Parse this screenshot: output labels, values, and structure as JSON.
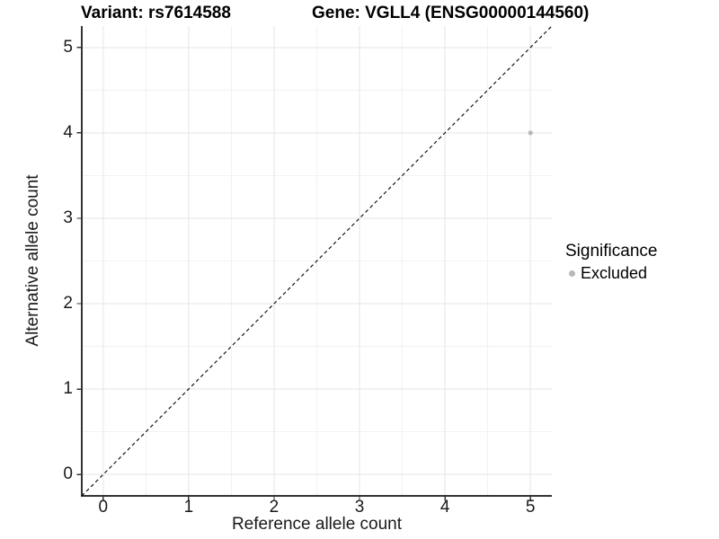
{
  "header": {
    "variant_title": "Variant: rs7614588",
    "gene_title": "Gene: VGLL4 (ENSG00000144560)"
  },
  "chart_data": {
    "type": "scatter",
    "xlabel": "Reference allele count",
    "ylabel": "Alternative allele count",
    "xlim": [
      -0.25,
      5.25
    ],
    "ylim": [
      -0.25,
      5.25
    ],
    "x_ticks": [
      0,
      1,
      2,
      3,
      4,
      5
    ],
    "y_ticks": [
      0,
      1,
      2,
      3,
      4,
      5
    ],
    "minor_grid_step": 0.5,
    "grid": true,
    "series": [
      {
        "name": "Excluded",
        "color": "#b8b8b8",
        "marker": "circle",
        "points": [
          {
            "x": 5,
            "y": 4
          }
        ]
      }
    ],
    "reference_line": {
      "type": "identity",
      "style": "dashed",
      "color": "#000000",
      "from": [
        -0.25,
        -0.25
      ],
      "to": [
        5.25,
        5.25
      ]
    },
    "legend": {
      "title": "Significance",
      "position": "right",
      "items": [
        {
          "label": "Excluded",
          "color": "#b8b8b8",
          "marker": "circle"
        }
      ]
    }
  },
  "colors": {
    "background": "#ffffff",
    "axis_line": "#333333",
    "tick_mark": "#333333",
    "grid_major": "#e6e6e6",
    "grid_minor": "#f2f2f2",
    "text": "#000000"
  }
}
